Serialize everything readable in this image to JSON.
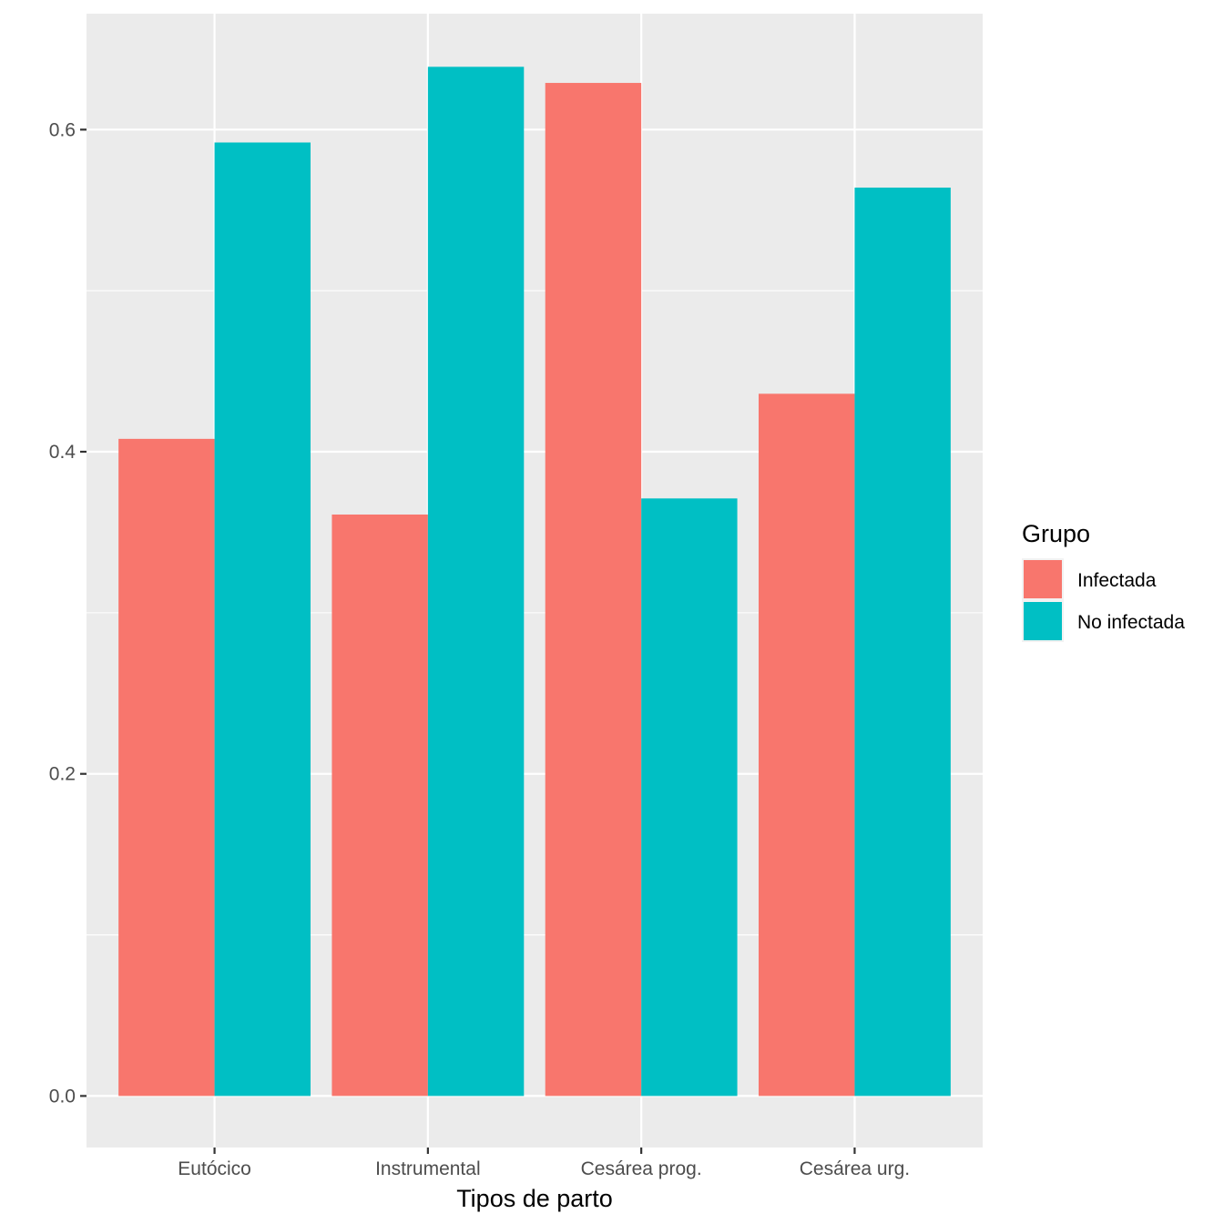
{
  "chart_data": {
    "type": "bar",
    "categories": [
      "Eutócico",
      "Instrumental",
      "Cesárea prog.",
      "Cesárea urg."
    ],
    "series": [
      {
        "name": "Infectada",
        "color": "#F8766D",
        "values": [
          0.408,
          0.361,
          0.629,
          0.436
        ]
      },
      {
        "name": "No infectada",
        "color": "#00BFC4",
        "values": [
          0.592,
          0.639,
          0.371,
          0.564
        ]
      }
    ],
    "title": "",
    "xlabel": "Tipos de parto",
    "ylabel": "",
    "ylim": [
      -0.032,
      0.672
    ],
    "yticks": [
      0.0,
      0.2,
      0.4,
      0.6
    ],
    "ytick_labels": [
      "0.0",
      "0.2",
      "0.4",
      "0.6"
    ],
    "grid": true,
    "legend": {
      "title": "Grupo",
      "position": "right"
    },
    "colors": {
      "panel_background": "#EBEBEB",
      "grid": "#FFFFFF"
    }
  }
}
